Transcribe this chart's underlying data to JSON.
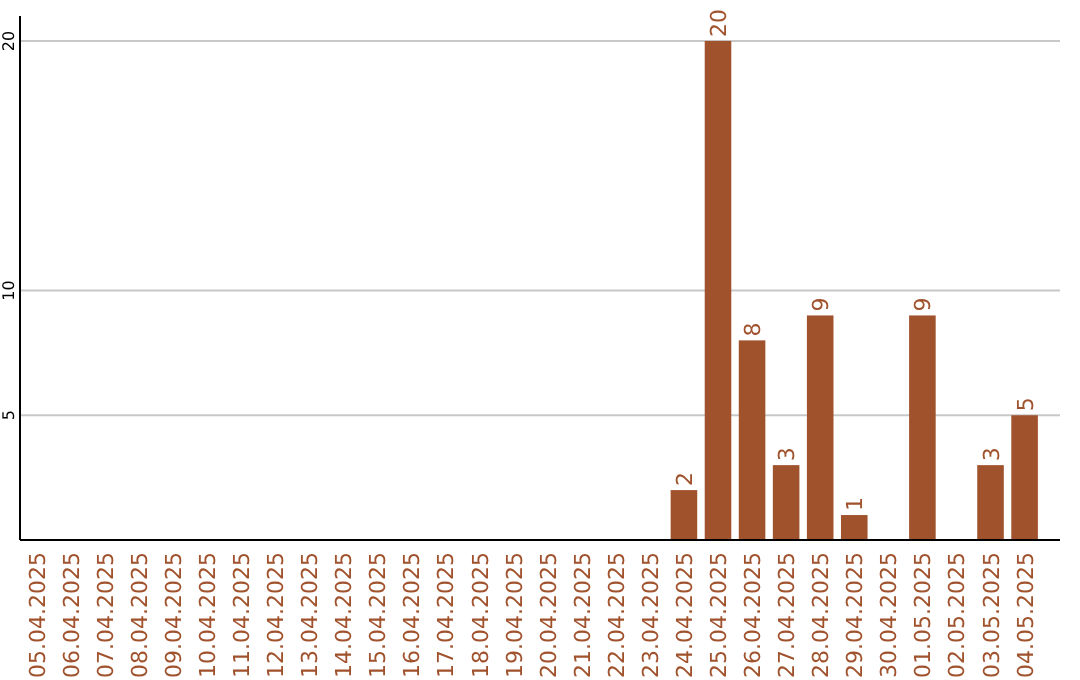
{
  "chart_data": {
    "type": "bar",
    "categories": [
      "05.04.2025",
      "06.04.2025",
      "07.04.2025",
      "08.04.2025",
      "09.04.2025",
      "10.04.2025",
      "11.04.2025",
      "12.04.2025",
      "13.04.2025",
      "14.04.2025",
      "15.04.2025",
      "16.04.2025",
      "17.04.2025",
      "18.04.2025",
      "19.04.2025",
      "20.04.2025",
      "21.04.2025",
      "22.04.2025",
      "23.04.2025",
      "24.04.2025",
      "25.04.2025",
      "26.04.2025",
      "27.04.2025",
      "28.04.2025",
      "29.04.2025",
      "30.04.2025",
      "01.05.2025",
      "02.05.2025",
      "03.05.2025",
      "04.05.2025"
    ],
    "values": [
      0,
      0,
      0,
      0,
      0,
      0,
      0,
      0,
      0,
      0,
      0,
      0,
      0,
      0,
      0,
      0,
      0,
      0,
      0,
      2,
      20,
      8,
      3,
      9,
      1,
      0,
      9,
      0,
      3,
      5
    ],
    "value_labels": [
      null,
      null,
      null,
      null,
      null,
      null,
      null,
      null,
      null,
      null,
      null,
      null,
      null,
      null,
      null,
      null,
      null,
      null,
      null,
      "2",
      "20",
      "8",
      "3",
      "9",
      "1",
      null,
      "9",
      null,
      "3",
      "5"
    ],
    "color": "#a0522d",
    "ylim": [
      0,
      21
    ],
    "yticks": [
      5,
      10,
      20
    ],
    "grid": "y"
  }
}
